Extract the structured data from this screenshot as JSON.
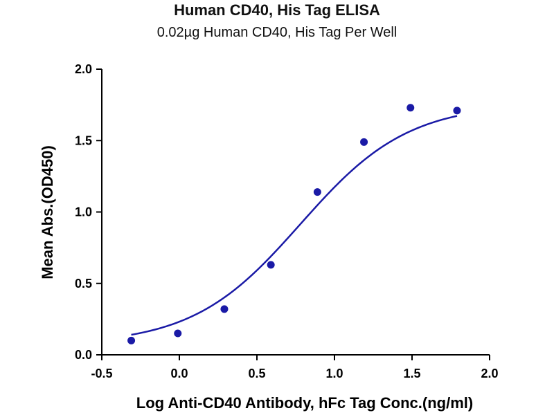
{
  "chart_data": {
    "type": "scatter",
    "title": "Human CD40, His Tag ELISA",
    "subtitle": "0.02µg Human CD40, His Tag Per Well",
    "xlabel": "Log Anti-CD40 Antibody, hFc Tag Conc.(ng/ml)",
    "ylabel": "Mean Abs.(OD450)",
    "xlim": [
      -0.5,
      2.0
    ],
    "ylim": [
      0.0,
      2.0
    ],
    "xticks": [
      "-0.5",
      "0.0",
      "0.5",
      "1.0",
      "1.5",
      "2.0"
    ],
    "yticks": [
      "0.0",
      "0.5",
      "1.0",
      "1.5",
      "2.0"
    ],
    "grid": false,
    "series": [
      {
        "x": [
          -0.31,
          -0.01,
          0.29,
          0.59,
          0.89,
          1.19,
          1.49,
          1.79
        ],
        "y": [
          0.1,
          0.15,
          0.32,
          0.63,
          1.14,
          1.49,
          1.73,
          1.71
        ],
        "fit": "4PL sigmoid",
        "color": "#1a1aa6"
      }
    ],
    "fit_params": {
      "bottom": 0.07,
      "top": 1.76,
      "logEC50": 0.78,
      "hill": 1.25
    }
  }
}
